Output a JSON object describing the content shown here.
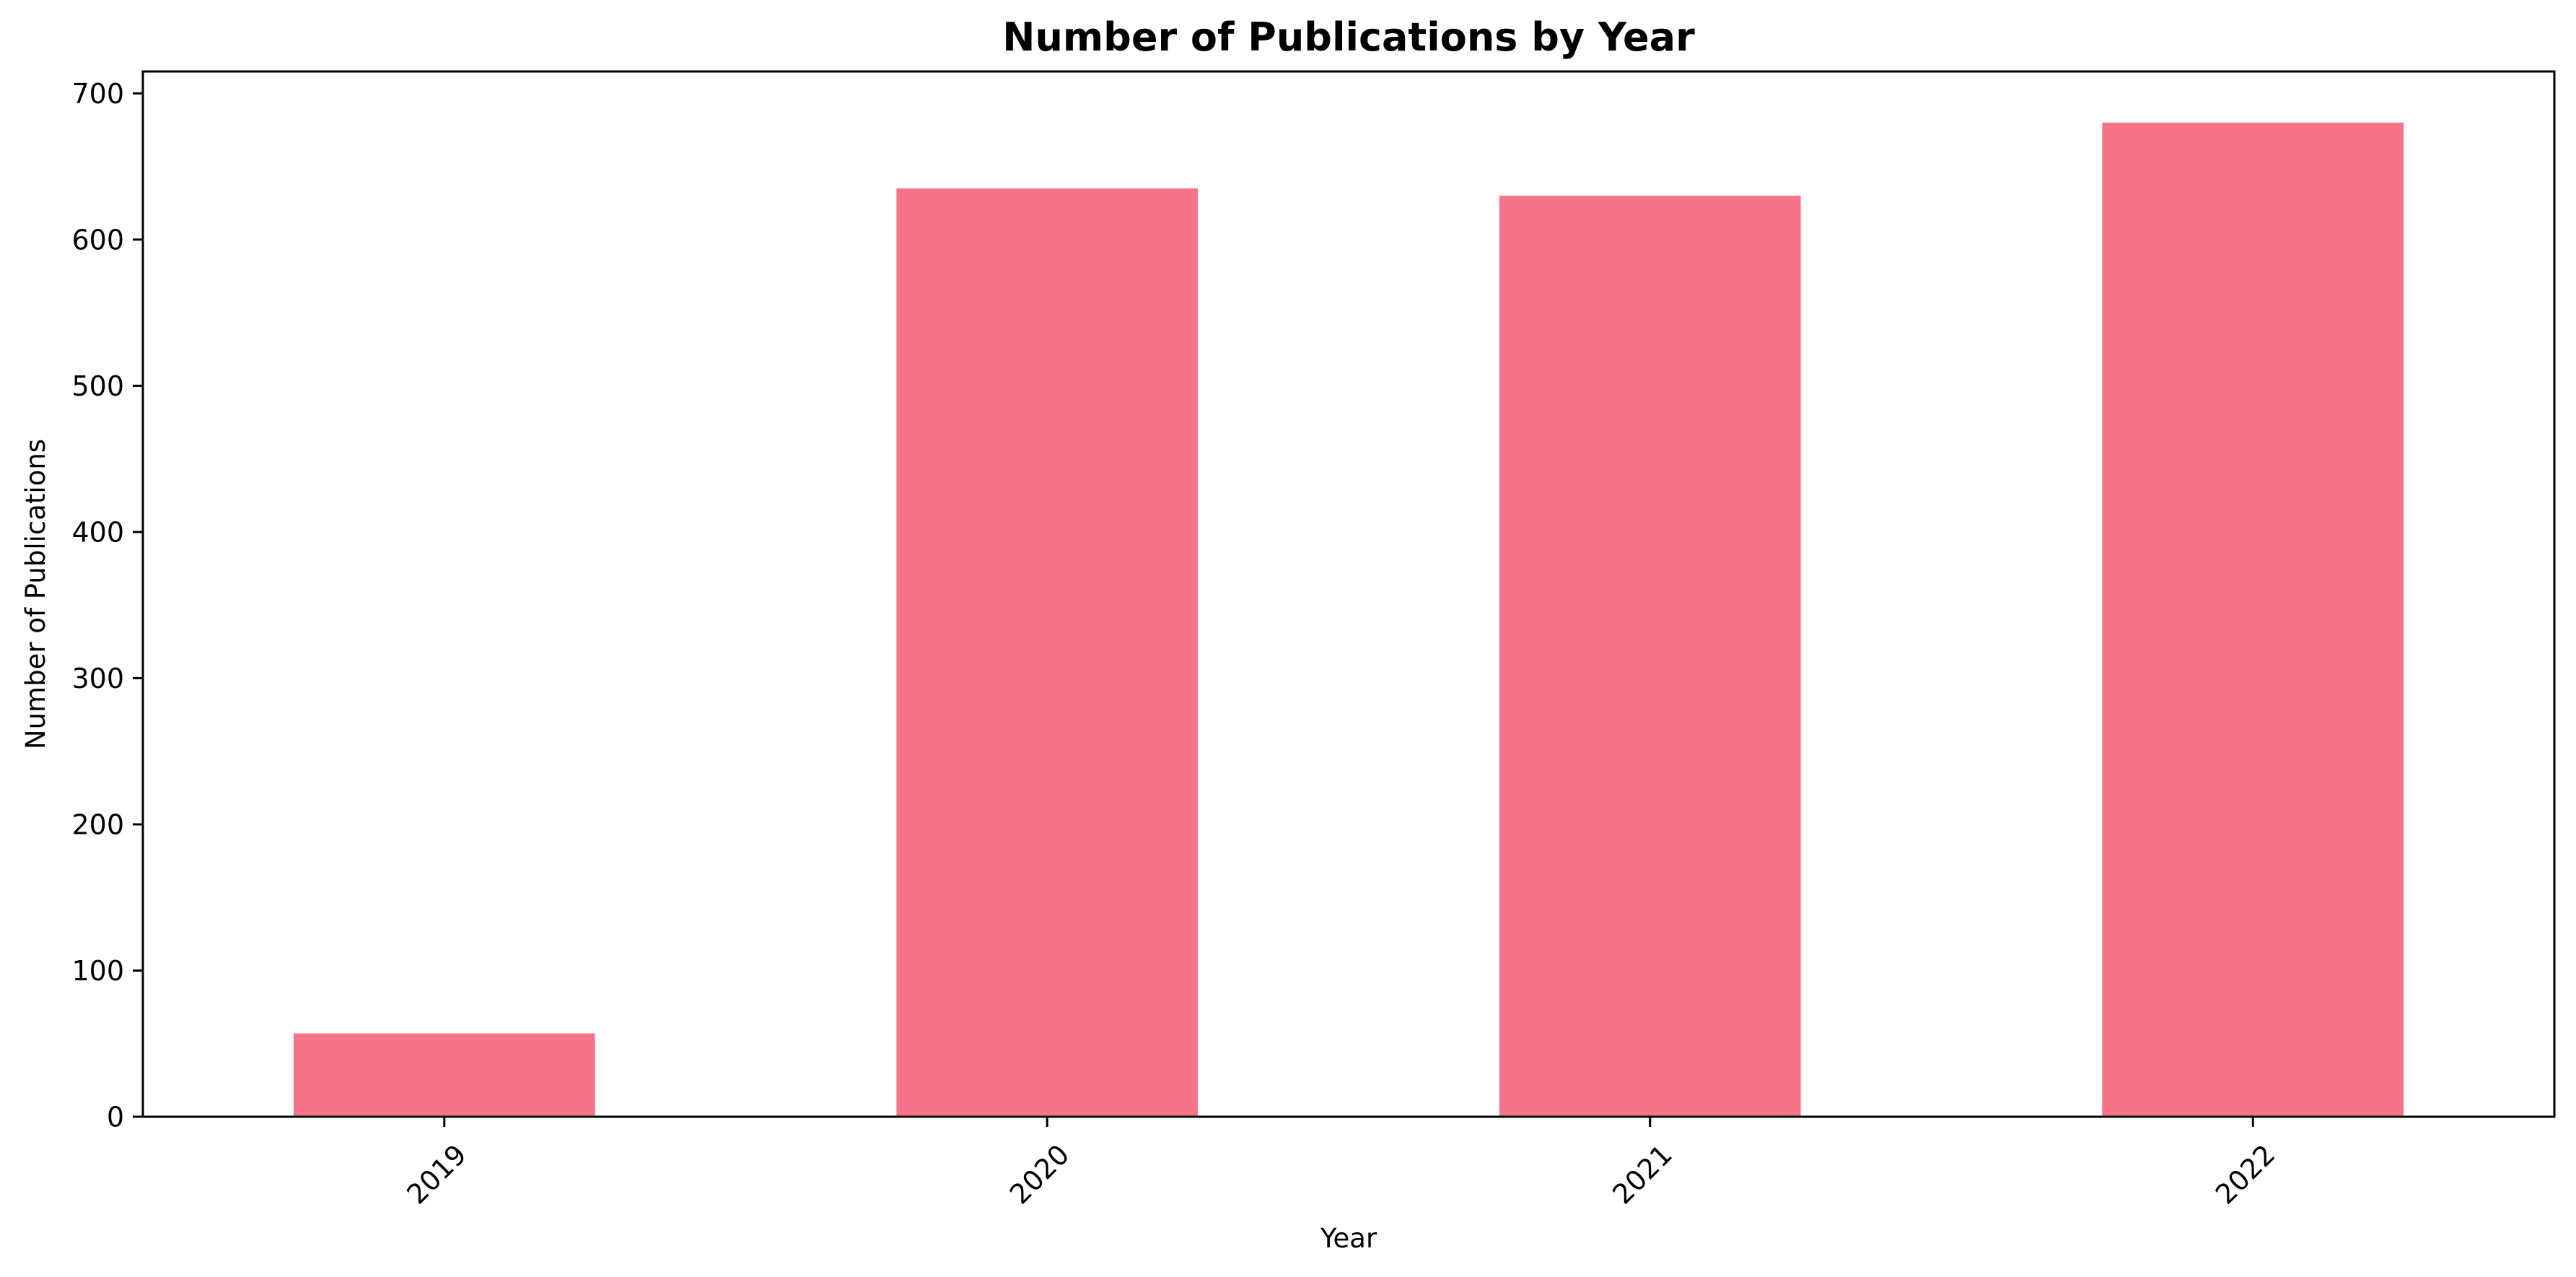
{
  "chart_data": {
    "type": "bar",
    "title": "Number of Publications by Year",
    "xlabel": "Year",
    "ylabel": "Number of Publications",
    "categories": [
      "2019",
      "2020",
      "2021",
      "2022"
    ],
    "values": [
      57,
      635,
      630,
      680
    ],
    "ylim": [
      0,
      715
    ],
    "yticks": [
      0,
      100,
      200,
      300,
      400,
      500,
      600,
      700
    ],
    "xtick_rotation_deg": 45,
    "grid": false,
    "legend": "none",
    "bar_color": "#f67489",
    "axis_color": "#000000"
  }
}
